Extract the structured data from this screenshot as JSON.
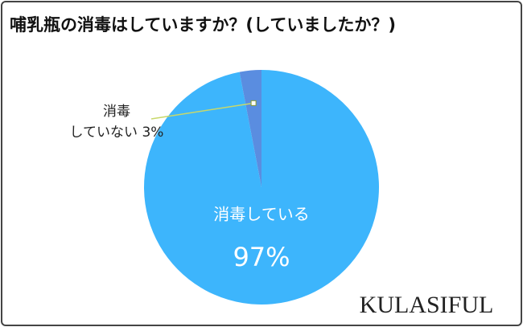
{
  "chart_data": {
    "type": "pie",
    "title": "哺乳瓶の消毒はしていますか？(していましたか？)",
    "categories": [
      "消毒している",
      "消毒\nしていない"
    ],
    "values": [
      97,
      3
    ],
    "value_labels": [
      "97%",
      "3%"
    ],
    "colors": [
      "#3db5fc",
      "#5a8de0"
    ],
    "watermark": "KULASIFUL"
  }
}
